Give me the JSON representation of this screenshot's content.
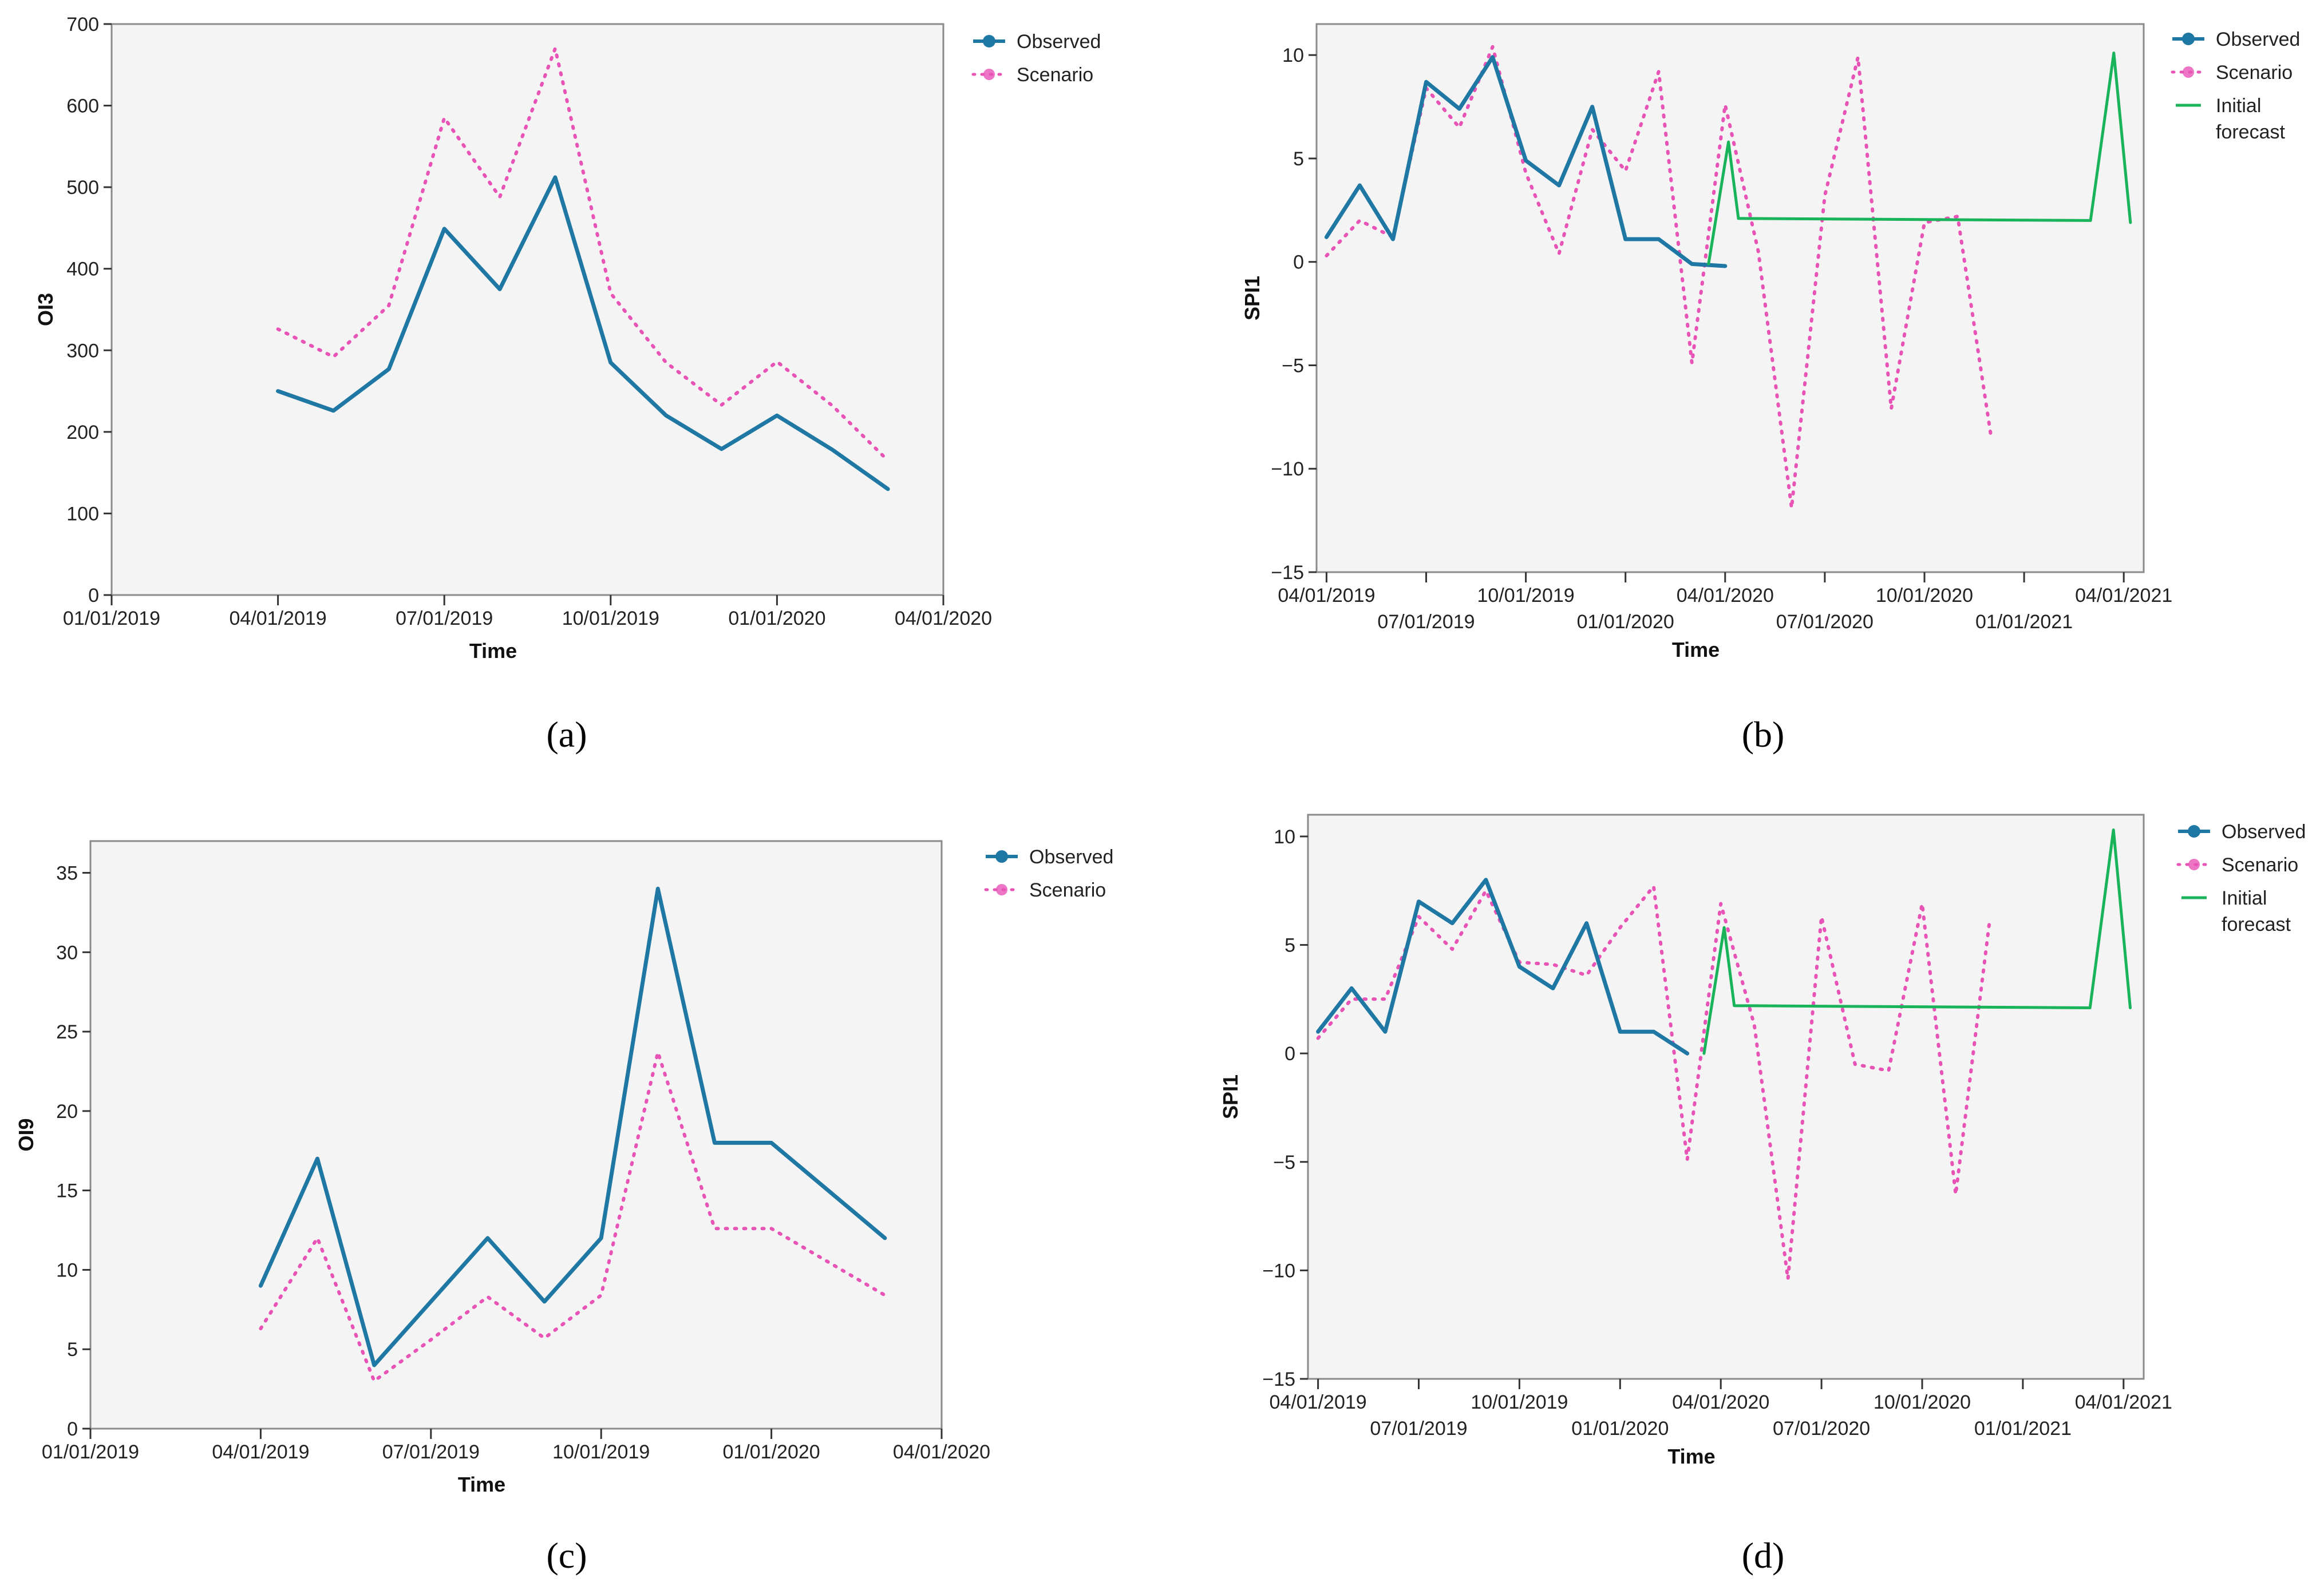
{
  "colors": {
    "observed": "#1f77a3",
    "scenario": "#e754b6",
    "initial_forecast": "#19b35a"
  },
  "chart_data": [
    {
      "panel_label": "(a)",
      "type": "line",
      "xlabel": "Time",
      "ylabel": "OI3",
      "ylim": [
        0,
        700
      ],
      "yticks": [
        0,
        100,
        200,
        300,
        400,
        500,
        600,
        700
      ],
      "xlim": [
        0,
        15
      ],
      "x_ticks": [
        {
          "x": 0,
          "label": "01/01/2019",
          "row": 0
        },
        {
          "x": 3,
          "label": "04/01/2019",
          "row": 0
        },
        {
          "x": 6,
          "label": "07/01/2019",
          "row": 0
        },
        {
          "x": 9,
          "label": "10/01/2019",
          "row": 0
        },
        {
          "x": 12,
          "label": "01/01/2020",
          "row": 0
        },
        {
          "x": 15,
          "label": "04/01/2020",
          "row": 0
        }
      ],
      "legend": [
        "Observed",
        "Scenario"
      ],
      "series": [
        {
          "name": "Observed",
          "style": "observed",
          "x": [
            3,
            4,
            5,
            6,
            7,
            8,
            9,
            10,
            11,
            12,
            13,
            14
          ],
          "y": [
            250,
            226,
            277,
            449,
            375,
            512,
            285,
            220,
            179,
            220,
            178,
            130
          ]
        },
        {
          "name": "Scenario",
          "style": "scenario",
          "x": [
            3,
            4,
            5,
            6,
            7,
            8,
            9,
            10,
            11,
            12,
            13,
            14
          ],
          "y": [
            326,
            292,
            355,
            585,
            488,
            670,
            370,
            285,
            233,
            286,
            232,
            165
          ]
        }
      ]
    },
    {
      "panel_label": "(b)",
      "type": "line",
      "xlabel": "Time",
      "ylabel": "SPI1",
      "ylim": [
        -15,
        11.5
      ],
      "yticks": [
        -15,
        -10,
        -5,
        0,
        5,
        10
      ],
      "xlim": [
        -0.3,
        24.6
      ],
      "x_ticks": [
        {
          "x": 0,
          "label": "04/01/2019",
          "row": 0
        },
        {
          "x": 3,
          "label": "07/01/2019",
          "row": 1
        },
        {
          "x": 6,
          "label": "10/01/2019",
          "row": 0
        },
        {
          "x": 9,
          "label": "01/01/2020",
          "row": 1
        },
        {
          "x": 12,
          "label": "04/01/2020",
          "row": 0
        },
        {
          "x": 15,
          "label": "07/01/2020",
          "row": 1
        },
        {
          "x": 18,
          "label": "10/01/2020",
          "row": 0
        },
        {
          "x": 21,
          "label": "01/01/2021",
          "row": 1
        },
        {
          "x": 24,
          "label": "04/01/2021",
          "row": 0
        }
      ],
      "legend": [
        "Observed",
        "Scenario",
        "Initial forecast"
      ],
      "series": [
        {
          "name": "Observed",
          "style": "observed",
          "x": [
            0,
            1,
            2,
            3,
            4,
            5,
            6,
            7,
            8,
            9,
            10,
            11,
            12
          ],
          "y": [
            1.2,
            3.7,
            1.1,
            8.7,
            7.4,
            9.9,
            4.9,
            3.7,
            7.5,
            1.1,
            1.1,
            -0.1,
            -0.2
          ]
        },
        {
          "name": "Scenario",
          "style": "scenario",
          "x": [
            0,
            1,
            2,
            3,
            4,
            5,
            6,
            7,
            8,
            9,
            10,
            11,
            12,
            13,
            14,
            15,
            16,
            17,
            18,
            19,
            20,
            21
          ],
          "y": [
            0.3,
            2.0,
            1.2,
            8.4,
            6.5,
            10.4,
            4.3,
            0.4,
            6.4,
            4.4,
            9.2,
            -4.9,
            7.6,
            0.5,
            -11.9,
            3.2,
            9.9,
            -7.1,
            1.9,
            2.2,
            -8.4,
            null
          ]
        },
        {
          "name": "Initial forecast",
          "style": "initial_forecast",
          "x": [
            11.5,
            12.1,
            12.4,
            23.0,
            23.7,
            24.2
          ],
          "y": [
            -0.1,
            5.8,
            2.1,
            2.0,
            10.1,
            1.9
          ]
        }
      ]
    },
    {
      "panel_label": "(c)",
      "type": "line",
      "xlabel": "Time",
      "ylabel": "OI9",
      "ylim": [
        0,
        37
      ],
      "yticks": [
        0,
        5,
        10,
        15,
        20,
        25,
        30,
        35
      ],
      "xlim": [
        0,
        15
      ],
      "x_ticks": [
        {
          "x": 0,
          "label": "01/01/2019",
          "row": 0
        },
        {
          "x": 3,
          "label": "04/01/2019",
          "row": 0
        },
        {
          "x": 6,
          "label": "07/01/2019",
          "row": 0
        },
        {
          "x": 9,
          "label": "10/01/2019",
          "row": 0
        },
        {
          "x": 12,
          "label": "01/01/2020",
          "row": 0
        },
        {
          "x": 15,
          "label": "04/01/2020",
          "row": 0
        }
      ],
      "legend": [
        "Observed",
        "Scenario"
      ],
      "series": [
        {
          "name": "Observed",
          "style": "observed",
          "x": [
            3,
            4,
            5,
            6,
            7,
            8,
            9,
            10,
            11,
            12,
            13,
            14
          ],
          "y": [
            9,
            17,
            4,
            8,
            12,
            8,
            12,
            34,
            18,
            18,
            15,
            12
          ]
        },
        {
          "name": "Scenario",
          "style": "scenario",
          "x": [
            3,
            4,
            5,
            6,
            7,
            8,
            9,
            10,
            11,
            12,
            13,
            14
          ],
          "y": [
            6.3,
            12,
            3,
            5.6,
            8.3,
            5.7,
            8.4,
            23.7,
            12.6,
            12.6,
            10.5,
            8.4
          ]
        }
      ]
    },
    {
      "panel_label": "(d)",
      "type": "line",
      "xlabel": "Time",
      "ylabel": "SPI1",
      "ylim": [
        -15,
        11
      ],
      "yticks": [
        -15,
        -10,
        -5,
        0,
        5,
        10
      ],
      "xlim": [
        -0.3,
        24.6
      ],
      "x_ticks": [
        {
          "x": 0,
          "label": "04/01/2019",
          "row": 0
        },
        {
          "x": 3,
          "label": "07/01/2019",
          "row": 1
        },
        {
          "x": 6,
          "label": "10/01/2019",
          "row": 0
        },
        {
          "x": 9,
          "label": "01/01/2020",
          "row": 1
        },
        {
          "x": 12,
          "label": "04/01/2020",
          "row": 0
        },
        {
          "x": 15,
          "label": "07/01/2020",
          "row": 1
        },
        {
          "x": 18,
          "label": "10/01/2020",
          "row": 0
        },
        {
          "x": 21,
          "label": "01/01/2021",
          "row": 1
        },
        {
          "x": 24,
          "label": "04/01/2021",
          "row": 0
        }
      ],
      "legend": [
        "Observed",
        "Scenario",
        "Initial forecast"
      ],
      "series": [
        {
          "name": "Observed",
          "style": "observed",
          "x": [
            0,
            1,
            2,
            3,
            4,
            5,
            6,
            7,
            8,
            9,
            10,
            11
          ],
          "y": [
            1.0,
            3.0,
            1.0,
            7.0,
            6.0,
            8.0,
            4.0,
            3.0,
            6.0,
            1.0,
            1.0,
            0.0
          ]
        },
        {
          "name": "Scenario",
          "style": "scenario",
          "x": [
            0,
            1,
            2,
            3,
            4,
            5,
            6,
            7,
            8,
            9,
            10,
            11,
            12,
            13,
            14,
            15,
            16,
            17,
            18,
            19,
            20,
            21
          ],
          "y": [
            0.7,
            2.5,
            2.5,
            6.3,
            4.8,
            7.5,
            4.2,
            4.1,
            3.6,
            5.8,
            7.7,
            -4.9,
            6.9,
            1.3,
            -10.4,
            6.3,
            -0.5,
            -0.8,
            6.9,
            -6.5,
            6.0,
            null
          ]
        },
        {
          "name": "Initial forecast",
          "style": "initial_forecast",
          "x": [
            11.5,
            12.1,
            12.4,
            23.0,
            23.7,
            24.2
          ],
          "y": [
            0.0,
            5.8,
            2.2,
            2.1,
            10.3,
            2.1
          ]
        }
      ]
    }
  ]
}
